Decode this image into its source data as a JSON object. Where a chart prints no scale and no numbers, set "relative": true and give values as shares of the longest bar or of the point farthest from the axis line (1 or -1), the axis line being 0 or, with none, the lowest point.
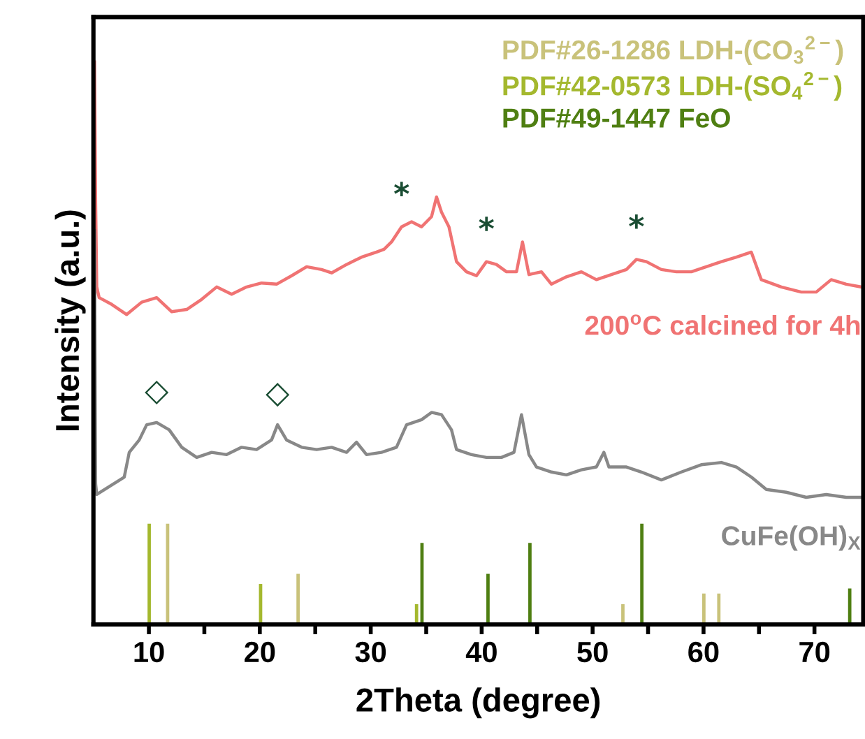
{
  "chart_data": {
    "type": "line",
    "relative": true,
    "xlabel": "2Theta (degree)",
    "ylabel": "Intensity (a.u.)",
    "xlim": [
      5,
      74.4
    ],
    "xticks": [
      10,
      {
        "value": 15,
        "label": null
      },
      20,
      {
        "value": 25,
        "label": null
      },
      30,
      {
        "value": 35,
        "label": null
      },
      40,
      {
        "value": 45,
        "label": null
      },
      50,
      {
        "value": 55,
        "label": null
      },
      60,
      {
        "value": 65,
        "label": null
      },
      70
    ],
    "tick_labels": "x",
    "grid": false,
    "legend": "top right",
    "marker": "none",
    "line_style": "solid",
    "series": [
      {
        "name": "200$^{o}$C calcined for 4h",
        "color": "#f07373",
        "x": [
          5.1,
          5.2,
          5.3,
          5.52,
          6.65,
          8.0,
          9.35,
          10.7,
          12.06,
          13.41,
          14.76,
          16.11,
          17.46,
          18.81,
          20.16,
          21.51,
          22.87,
          24.22,
          25.57,
          26.47,
          27.82,
          29.17,
          30.52,
          31.2,
          31.87,
          32.78,
          33.68,
          34.58,
          35.48,
          35.93,
          36.38,
          37.05,
          37.73,
          38.63,
          39.53,
          40.43,
          41.33,
          42.24,
          43.14,
          43.68,
          44.26,
          45.39,
          46.29,
          47.64,
          48.99,
          50.34,
          51.69,
          53.05,
          53.95,
          54.85,
          56.2,
          57.55,
          58.9,
          60.25,
          61.61,
          62.96,
          64.31,
          65.21,
          67.01,
          68.81,
          70.16,
          71.51,
          72.86,
          74.22
        ],
        "values": [
          1.0,
          0.75,
          0.6,
          0.581,
          0.569,
          0.551,
          0.573,
          0.581,
          0.556,
          0.56,
          0.578,
          0.6,
          0.587,
          0.6,
          0.607,
          0.605,
          0.62,
          0.636,
          0.631,
          0.625,
          0.64,
          0.653,
          0.662,
          0.667,
          0.68,
          0.707,
          0.716,
          0.707,
          0.725,
          0.76,
          0.733,
          0.707,
          0.645,
          0.627,
          0.62,
          0.645,
          0.64,
          0.627,
          0.627,
          0.68,
          0.622,
          0.627,
          0.605,
          0.618,
          0.627,
          0.613,
          0.622,
          0.631,
          0.649,
          0.645,
          0.631,
          0.627,
          0.627,
          0.636,
          0.645,
          0.653,
          0.662,
          0.613,
          0.6,
          0.591,
          0.591,
          0.613,
          0.605,
          0.6
        ]
      },
      {
        "name": "CuFe(OH)$_{X}$",
        "color": "#888888",
        "x": [
          5.1,
          5.2,
          5.3,
          6.65,
          7.78,
          8.23,
          9.13,
          9.8,
          10.7,
          11.83,
          12.96,
          14.31,
          15.66,
          17.01,
          18.36,
          19.71,
          21.06,
          21.6,
          22.41,
          23.77,
          25.12,
          26.47,
          27.82,
          28.72,
          29.62,
          30.97,
          32.32,
          33.23,
          34.58,
          35.48,
          36.38,
          37.28,
          37.73,
          39.08,
          40.43,
          41.78,
          42.91,
          43.59,
          44.26,
          44.94,
          46.29,
          47.64,
          48.99,
          50.34,
          51.02,
          51.47,
          53.05,
          54.4,
          56.2,
          58.0,
          59.8,
          61.61,
          62.96,
          64.31,
          65.66,
          67.46,
          69.26,
          71.06,
          72.86,
          74.22
        ],
        "values": [
          0.7,
          0.25,
          0.231,
          0.248,
          0.262,
          0.306,
          0.328,
          0.355,
          0.359,
          0.346,
          0.315,
          0.297,
          0.306,
          0.302,
          0.315,
          0.311,
          0.328,
          0.355,
          0.328,
          0.315,
          0.311,
          0.315,
          0.306,
          0.324,
          0.302,
          0.306,
          0.315,
          0.355,
          0.364,
          0.377,
          0.373,
          0.346,
          0.311,
          0.302,
          0.297,
          0.297,
          0.306,
          0.373,
          0.302,
          0.28,
          0.271,
          0.266,
          0.275,
          0.28,
          0.306,
          0.28,
          0.28,
          0.271,
          0.257,
          0.271,
          0.284,
          0.288,
          0.28,
          0.262,
          0.24,
          0.235,
          0.226,
          0.231,
          0.226,
          0.226
        ]
      },
      {
        "name": "PDF#26-1286 LDH-(CO$_{3}$$^{2−}$)",
        "color": "#c9c27a",
        "type": "bar",
        "x": [
          11.69,
          23.45,
          52.73,
          60.03,
          61.38
        ],
        "values": [
          0.179,
          0.09,
          0.036,
          0.055,
          0.055
        ]
      },
      {
        "name": "PDF#42-0573 LDH-(SO$_{4}$$^{2−}$)",
        "color": "#a4b82e",
        "type": "bar",
        "x": [
          10.03,
          20.07,
          34.13
        ],
        "values": [
          0.179,
          0.072,
          0.036
        ]
      },
      {
        "name": "PDF#49-1447 FeO",
        "color": "#4f7f12",
        "type": "bar",
        "x": [
          34.62,
          40.57,
          44.35,
          54.44,
          73.18
        ],
        "values": [
          0.145,
          0.09,
          0.145,
          0.179,
          0.064
        ]
      }
    ],
    "annotations": [
      {
        "text": "*",
        "x": 32.78,
        "y": 0.707
      },
      {
        "text": "*",
        "x": 40.43,
        "y": 0.645
      },
      {
        "text": "*",
        "x": 53.95,
        "y": 0.649
      },
      {
        "text": "◇",
        "x": 10.7,
        "y": 0.359
      },
      {
        "text": "◇",
        "x": 21.6,
        "y": 0.355
      }
    ]
  }
}
